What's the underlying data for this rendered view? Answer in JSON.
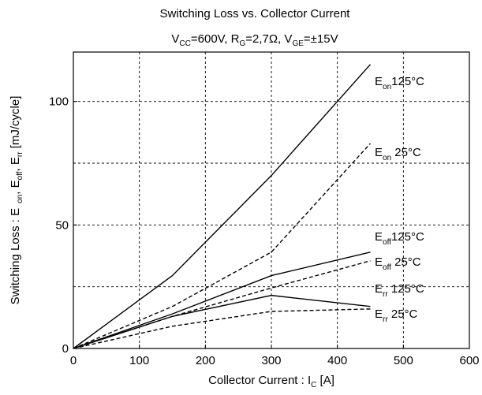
{
  "chart_data": {
    "type": "line",
    "title": "Switching Loss vs. Collector Current",
    "subtitle": {
      "vcc": {
        "main": "V",
        "sub": "CC",
        "rest": "=600V, "
      },
      "rg": {
        "main": "R",
        "sub": "G",
        "rest": "=2,7Ω, "
      },
      "vge": {
        "main": "V",
        "sub": "GE",
        "rest": "=±15V"
      }
    },
    "xlabel": {
      "main": "Collector Current  :  I",
      "sub": "C",
      "rest": "  [A]"
    },
    "ylabel": {
      "p1": "Switching Loss :  E",
      "s1": "on",
      "p2": ", E",
      "s2": "off",
      "p3": ", E",
      "s3": "rr",
      "p4": " [mJ/cycle]"
    },
    "xlim": [
      0,
      600
    ],
    "ylim": [
      0,
      120
    ],
    "xticks": [
      0,
      100,
      200,
      300,
      400,
      500,
      600
    ],
    "yticks": [
      0,
      50,
      100
    ],
    "xtick_labels": [
      "0",
      "100",
      "200",
      "300",
      "400",
      "500",
      "600"
    ],
    "ytick_labels": [
      "0",
      "50",
      "100"
    ],
    "grid_x": [
      100,
      200,
      300,
      400,
      500
    ],
    "grid_y": [
      25,
      50,
      75,
      100
    ],
    "grid": true,
    "series": [
      {
        "label_main": "E",
        "label_sub": "on",
        "label_rest": "125°C",
        "dash": false,
        "x": [
          0,
          150,
          300,
          450
        ],
        "y": [
          0,
          29.5,
          70,
          115
        ]
      },
      {
        "label_main": "E",
        "label_sub": "on",
        "label_rest": " 25°C",
        "dash": true,
        "x": [
          0,
          150,
          300,
          450
        ],
        "y": [
          0,
          17,
          39,
          83
        ]
      },
      {
        "label_main": "E",
        "label_sub": "off",
        "label_rest": "125°C",
        "dash": false,
        "x": [
          0,
          150,
          300,
          450
        ],
        "y": [
          0,
          14,
          29.5,
          39
        ]
      },
      {
        "label_main": "E",
        "label_sub": "off",
        "label_rest": "  25°C",
        "dash": true,
        "x": [
          0,
          150,
          300,
          450
        ],
        "y": [
          0,
          13,
          24.5,
          35.5
        ]
      },
      {
        "label_main": "E",
        "label_sub": "rr",
        "label_rest": "  125°C",
        "dash": false,
        "x": [
          0,
          150,
          300,
          450
        ],
        "y": [
          0,
          13,
          21.5,
          17
        ]
      },
      {
        "label_main": "E",
        "label_sub": "rr",
        "label_rest": "   25°C",
        "dash": true,
        "x": [
          0,
          150,
          300,
          450
        ],
        "y": [
          0,
          9,
          15,
          16
        ]
      }
    ]
  }
}
